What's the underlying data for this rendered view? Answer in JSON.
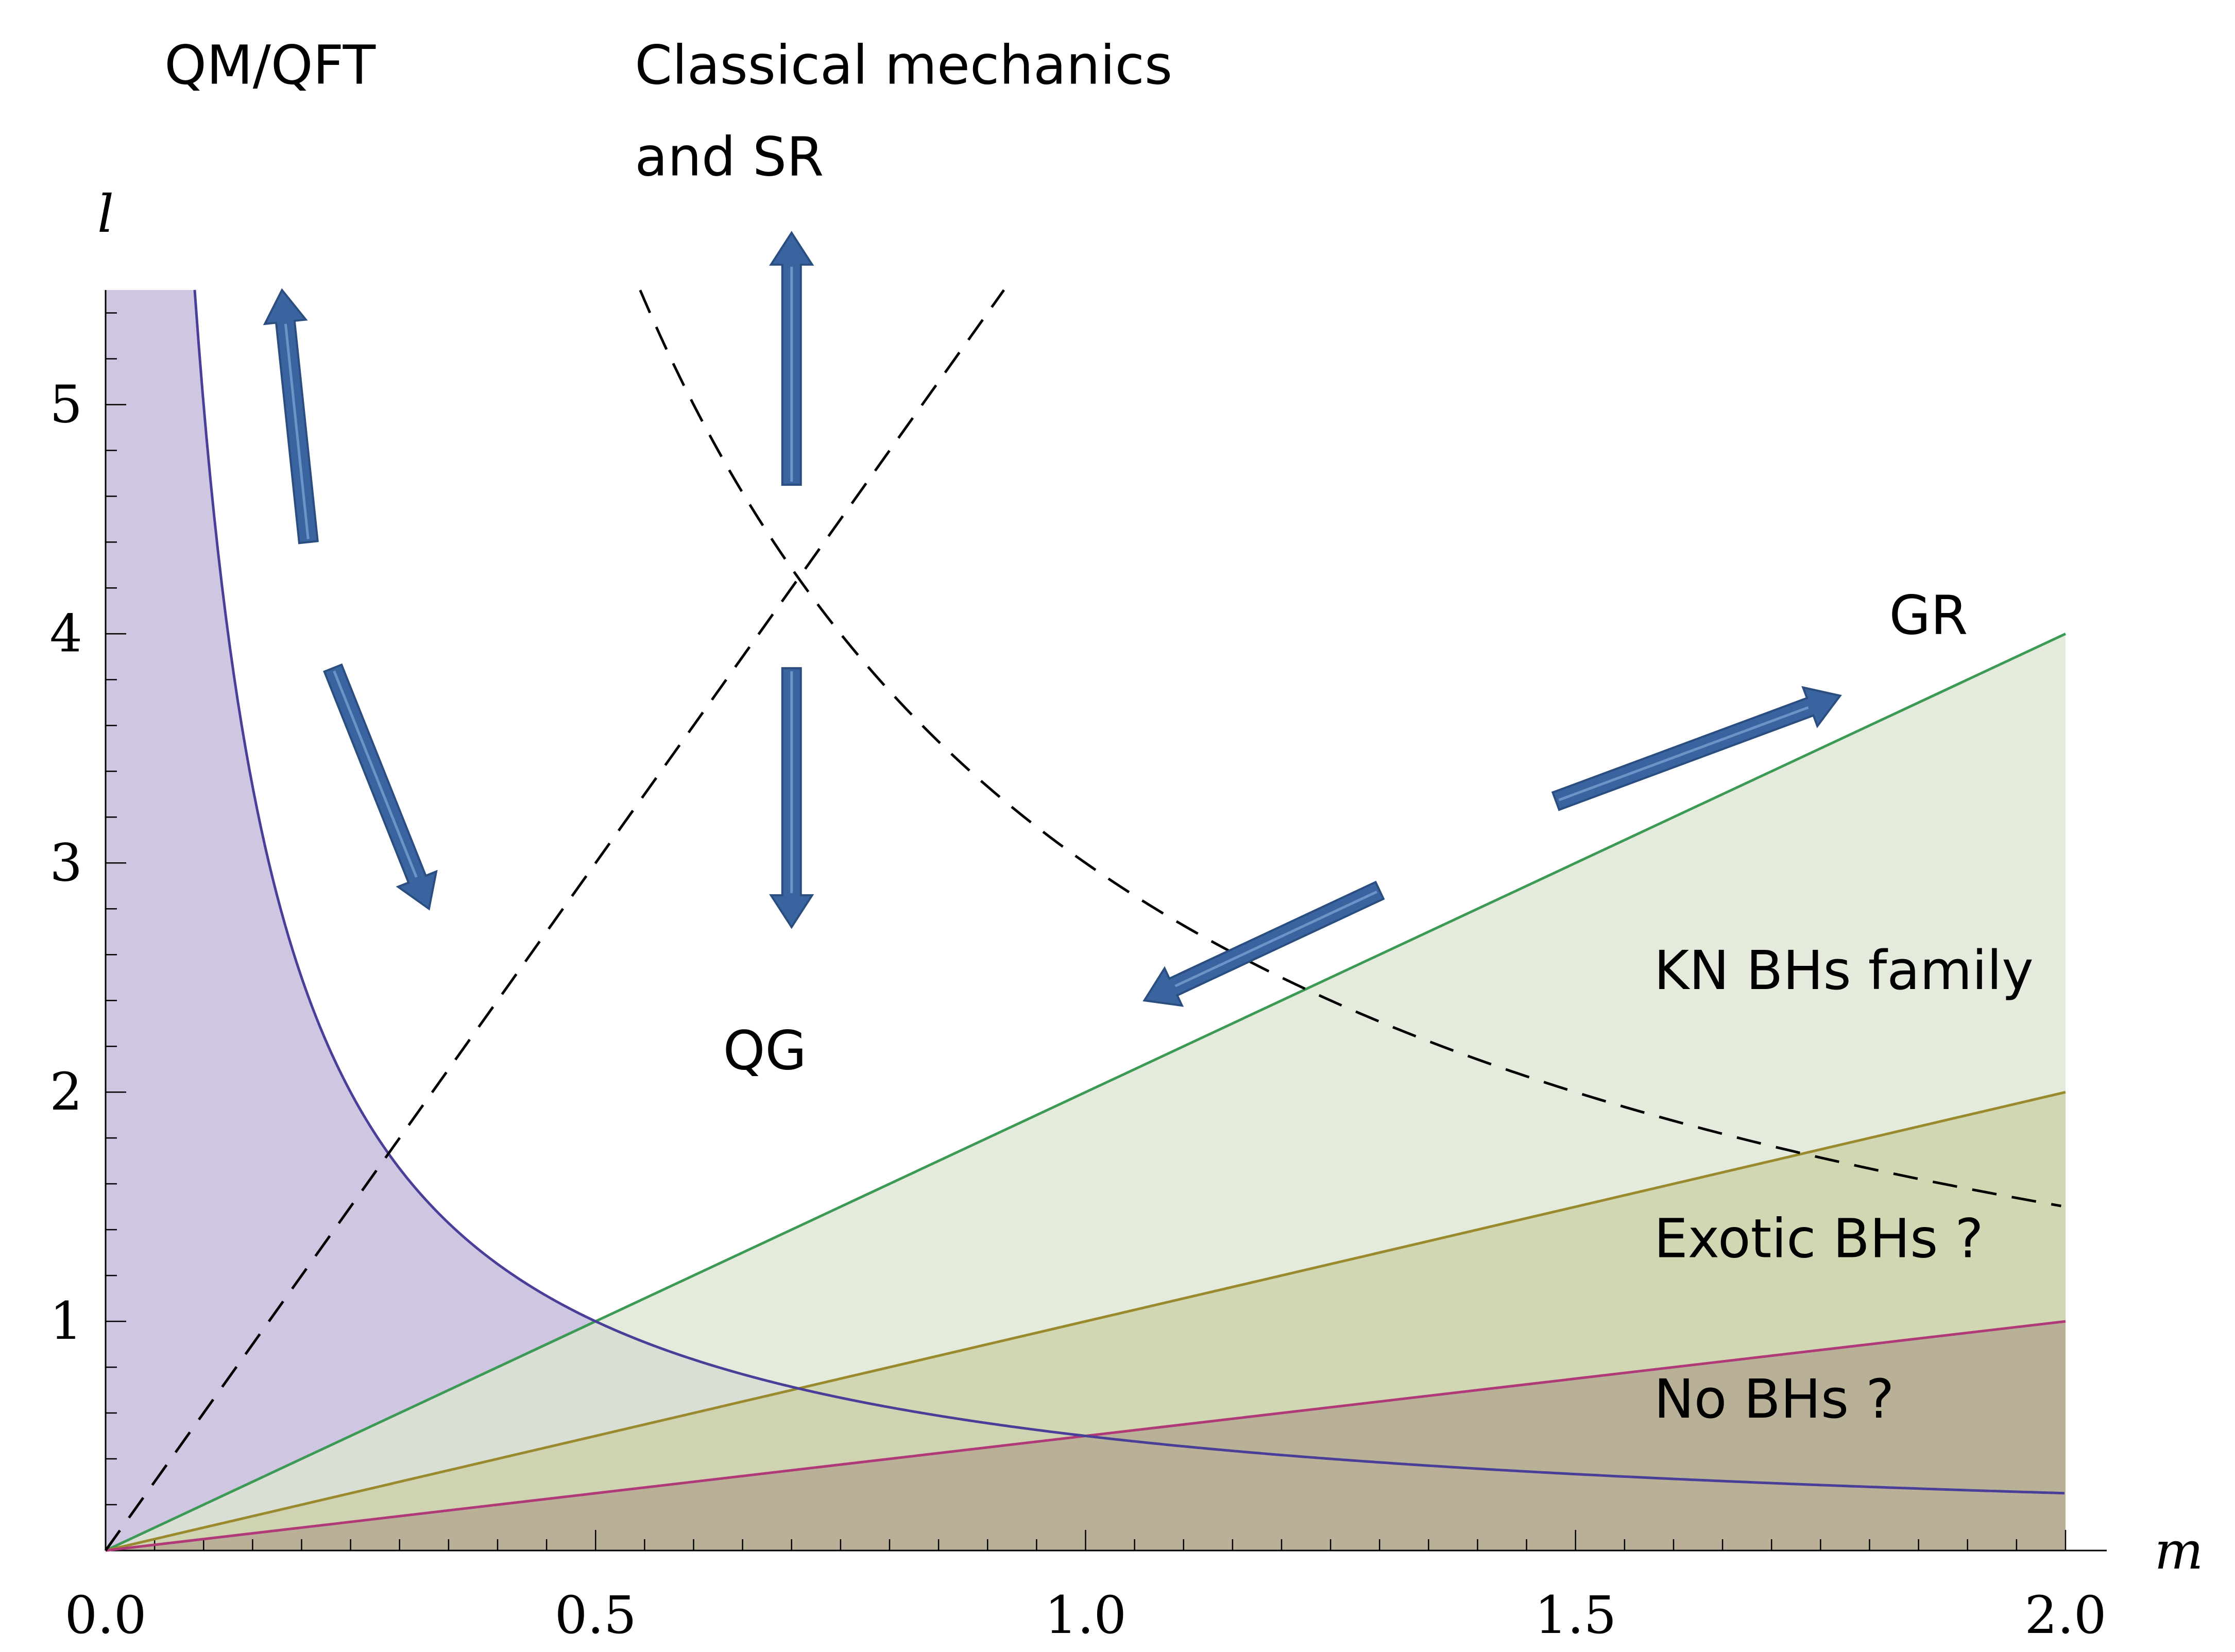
{
  "chart_data": {
    "type": "line",
    "xlabel": "m",
    "ylabel": "l",
    "xlim": [
      0,
      2.0
    ],
    "ylim": [
      0,
      5.5
    ],
    "x_ticks": [
      0.0,
      0.5,
      1.0,
      1.5,
      2.0
    ],
    "x_tick_labels": [
      "0.0",
      "0.5",
      "1.0",
      "1.5",
      "2.0"
    ],
    "y_ticks": [
      1,
      2,
      3,
      4,
      5
    ],
    "y_tick_labels": [
      "1",
      "2",
      "3",
      "4",
      "5"
    ],
    "grid": false,
    "series": [
      {
        "color": "#4a3f98",
        "formula": "l = 1/(2m)",
        "x": [
          0.0909,
          0.1,
          0.125,
          0.25,
          0.5,
          1.0,
          1.5,
          2.0
        ],
        "y": [
          5.5,
          5.0,
          4.0,
          2.0,
          1.0,
          0.5,
          0.333,
          0.25
        ],
        "fill": "#cfc6e2",
        "fill_region": "below curve"
      },
      {
        "color": "#3d9a55",
        "formula": "l = 2m",
        "x": [
          0,
          2.0
        ],
        "y": [
          0,
          4.0
        ],
        "fill": "#dde5d2",
        "fill_region": "below line"
      },
      {
        "color": "#9a8a2e",
        "formula": "l = m",
        "x": [
          0,
          2.0
        ],
        "y": [
          0,
          2.0
        ],
        "fill": "#ccd0a8",
        "fill_region": "below line"
      },
      {
        "color": "#b03a78",
        "formula": "l = m/2",
        "x": [
          0,
          2.0
        ],
        "y": [
          0,
          1.0
        ],
        "fill": "#b2a690",
        "fill_region": "below line"
      },
      {
        "color": "#000000",
        "style": "dashed",
        "formula": "l = 6m",
        "x": [
          0,
          0.9167
        ],
        "y": [
          0,
          5.5
        ]
      },
      {
        "color": "#000000",
        "style": "dashed",
        "formula": "l = 3/m",
        "x": [
          0.5455,
          2.0
        ],
        "y": [
          5.5,
          1.5
        ]
      }
    ],
    "annotations": [
      {
        "text": "QM/QFT",
        "x": 0.06,
        "y": 6.4
      },
      {
        "text": "Classical mechanics",
        "x": 0.54,
        "y": 6.4
      },
      {
        "text": "and SR",
        "x": 0.54,
        "y": 6.0
      },
      {
        "text": "GR",
        "x": 1.82,
        "y": 4.0
      },
      {
        "text": "QG",
        "x": 0.63,
        "y": 2.1
      },
      {
        "text": "KN BHs family",
        "x": 1.58,
        "y": 2.45
      },
      {
        "text": "Exotic BHs ?",
        "x": 1.58,
        "y": 1.28
      },
      {
        "text": "No BHs ?",
        "x": 1.58,
        "y": 0.58
      }
    ],
    "arrows": [
      {
        "color": "#3a64a0",
        "from": [
          0.207,
          4.4
        ],
        "to": [
          0.18,
          5.5
        ]
      },
      {
        "color": "#3a64a0",
        "from": [
          0.232,
          3.85
        ],
        "to": [
          0.33,
          2.8
        ]
      },
      {
        "color": "#3a64a0",
        "from": [
          0.7,
          4.65
        ],
        "to": [
          0.7,
          5.75
        ]
      },
      {
        "color": "#3a64a0",
        "from": [
          0.7,
          3.85
        ],
        "to": [
          0.7,
          2.72
        ]
      },
      {
        "color": "#3a64a0",
        "from": [
          1.48,
          3.27
        ],
        "to": [
          1.77,
          3.73
        ]
      },
      {
        "color": "#3a64a0",
        "from": [
          1.3,
          2.88
        ],
        "to": [
          1.06,
          2.4
        ]
      }
    ]
  }
}
